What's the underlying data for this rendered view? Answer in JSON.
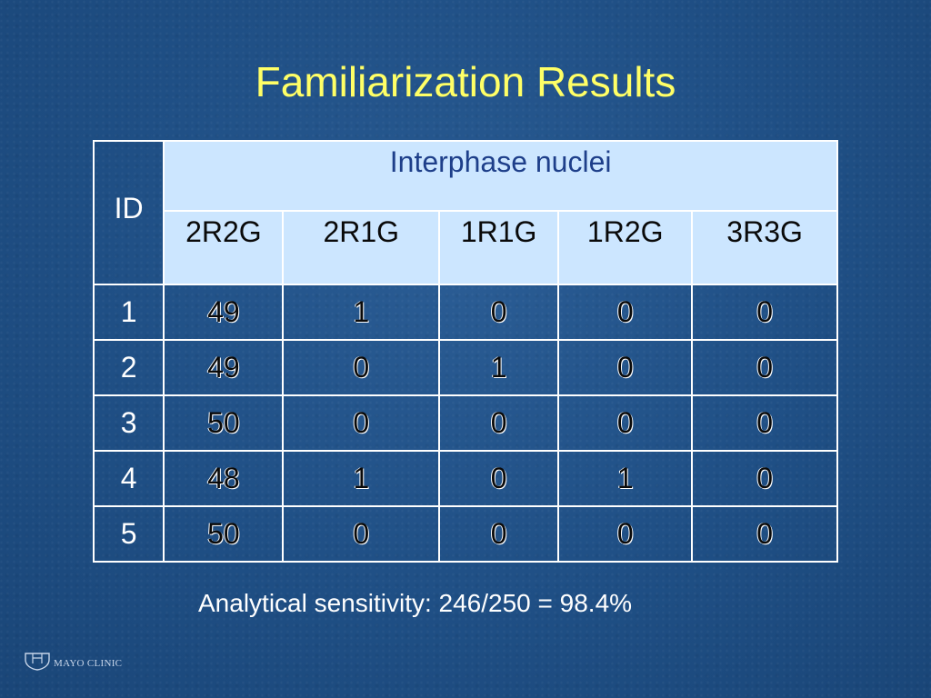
{
  "slide": {
    "title": "Familiarization Results",
    "footnote": "Analytical sensitivity:  246/250 = 98.4%",
    "logo_text": "MAYO CLINIC"
  },
  "table": {
    "id_header": "ID",
    "group_header": "Interphase nuclei",
    "columns": [
      "2R2G",
      "2R1G",
      "1R1G",
      "1R2G",
      "3R3G"
    ],
    "rows": [
      {
        "id": "1",
        "values": [
          "49",
          "1",
          "0",
          "0",
          "0"
        ]
      },
      {
        "id": "2",
        "values": [
          "49",
          "0",
          "1",
          "0",
          "0"
        ]
      },
      {
        "id": "3",
        "values": [
          "50",
          "0",
          "0",
          "0",
          "0"
        ]
      },
      {
        "id": "4",
        "values": [
          "48",
          "1",
          "0",
          "1",
          "0"
        ]
      },
      {
        "id": "5",
        "values": [
          "50",
          "0",
          "0",
          "0",
          "0"
        ]
      }
    ]
  },
  "colors": {
    "background": "#1f4f85",
    "title": "#ffff66",
    "header_fill": "#cce6ff",
    "group_header_text": "#1e3f8a"
  },
  "icons": [
    "mayo-clinic-shield-icon"
  ]
}
